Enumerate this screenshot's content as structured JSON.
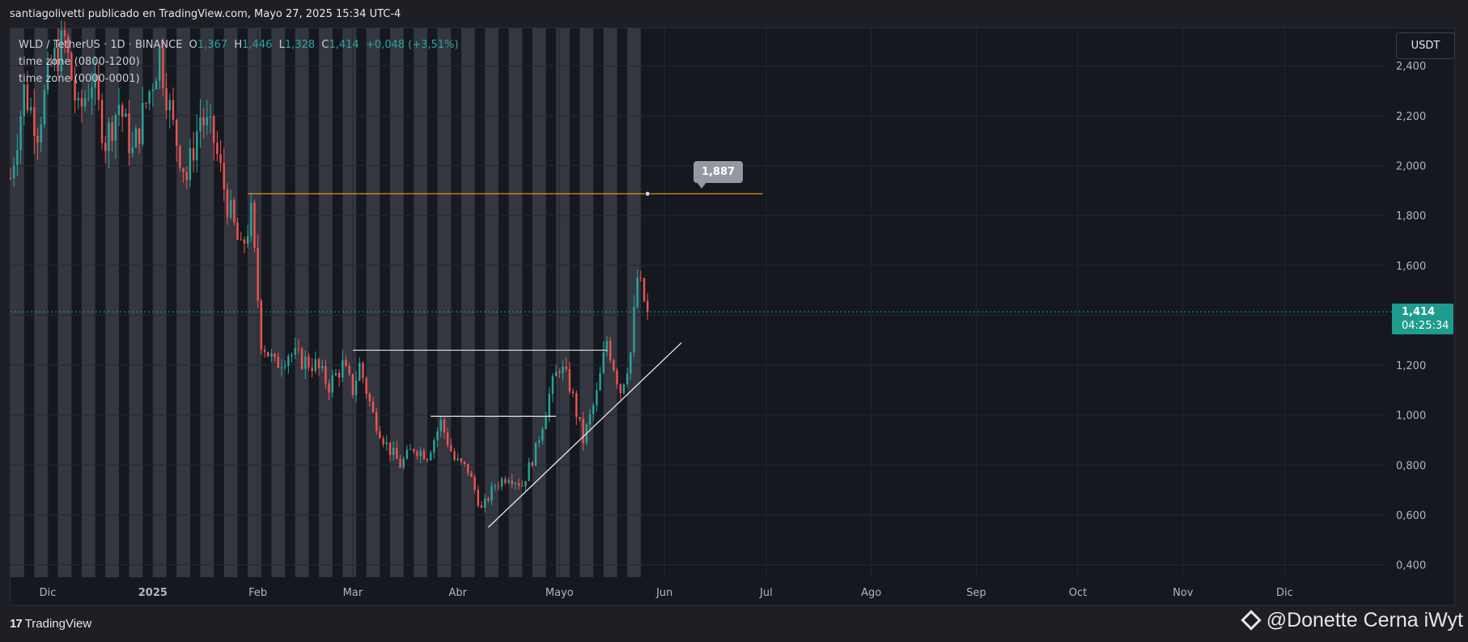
{
  "header": {
    "publisher_line": "santiagolivetti publicado en TradingView.com, Mayo 27, 2025 15:34 UTC-4"
  },
  "legend": {
    "symbol": "WLD / TetherUS · 1D · BINANCE",
    "open_label": "O",
    "open": "1,367",
    "high_label": "H",
    "high": "1,446",
    "low_label": "L",
    "low": "1,328",
    "close_label": "C",
    "close": "1,414",
    "change": "+0,048 (+3,51%)",
    "indicator_1": "time zone (0800-1200)",
    "indicator_2": "time zone (0000-0001)"
  },
  "price_axis": {
    "currency": "USDT"
  },
  "last_price": {
    "price": "1,414",
    "countdown": "04:25:34",
    "value": 1.414
  },
  "annotation": {
    "label": "1,887",
    "value": 1.887
  },
  "footer": {
    "brand": "TradingView",
    "watermark": "@Donette Cerna iWyt"
  },
  "colors": {
    "up": "#26a69a",
    "down": "#ef5350",
    "resistance": "#f59a23",
    "time_zone_bands": "#3a3d47",
    "last_price": "#1e9c8e"
  },
  "chart_data": {
    "type": "candlestick",
    "title": "WLD / TetherUS · 1D · BINANCE",
    "ylim": [
      0.35,
      2.55
    ],
    "y_ticks": [
      2.4,
      2.2,
      2.0,
      1.8,
      1.6,
      1.4,
      1.2,
      1.0,
      0.8,
      0.6,
      0.4
    ],
    "y_tick_labels": [
      "2,400",
      "2,200",
      "2,000",
      "1,800",
      "1,600",
      "1,400",
      "1,200",
      "1,000",
      "0,800",
      "0,600",
      "0,400"
    ],
    "x_range": [
      "2024-11-20",
      "2025-12-31"
    ],
    "x_ticks": [
      {
        "date": "2024-12-01",
        "label": "Dic"
      },
      {
        "date": "2025-01-01",
        "label": "2025"
      },
      {
        "date": "2025-02-01",
        "label": "Feb"
      },
      {
        "date": "2025-03-01",
        "label": "Mar"
      },
      {
        "date": "2025-04-01",
        "label": "Abr"
      },
      {
        "date": "2025-05-01",
        "label": "Mayo"
      },
      {
        "date": "2025-06-01",
        "label": "Jun"
      },
      {
        "date": "2025-07-01",
        "label": "Jul"
      },
      {
        "date": "2025-08-01",
        "label": "Ago"
      },
      {
        "date": "2025-09-01",
        "label": "Sep"
      },
      {
        "date": "2025-10-01",
        "label": "Oct"
      },
      {
        "date": "2025-11-01",
        "label": "Nov"
      },
      {
        "date": "2025-12-01",
        "label": "Dic"
      }
    ],
    "grid": true,
    "close_path": [
      [
        "2024-11-20",
        1.95
      ],
      [
        "2024-11-24",
        2.3
      ],
      [
        "2024-11-28",
        2.15
      ],
      [
        "2024-12-02",
        2.4
      ],
      [
        "2024-12-06",
        2.5
      ],
      [
        "2024-12-10",
        2.2
      ],
      [
        "2024-12-14",
        2.35
      ],
      [
        "2024-12-18",
        2.1
      ],
      [
        "2024-12-22",
        2.25
      ],
      [
        "2024-12-26",
        2.05
      ],
      [
        "2024-12-30",
        2.25
      ],
      [
        "2025-01-03",
        2.45
      ],
      [
        "2025-01-07",
        2.15
      ],
      [
        "2025-01-11",
        1.95
      ],
      [
        "2025-01-15",
        2.2
      ],
      [
        "2025-01-19",
        2.1
      ],
      [
        "2025-01-23",
        1.85
      ],
      [
        "2025-01-27",
        1.65
      ],
      [
        "2025-01-30",
        1.8
      ],
      [
        "2025-02-02",
        1.3
      ],
      [
        "2025-02-06",
        1.2
      ],
      [
        "2025-02-10",
        1.25
      ],
      [
        "2025-02-14",
        1.22
      ],
      [
        "2025-02-18",
        1.2
      ],
      [
        "2025-02-22",
        1.12
      ],
      [
        "2025-02-26",
        1.2
      ],
      [
        "2025-03-01",
        1.1
      ],
      [
        "2025-03-03",
        1.2
      ],
      [
        "2025-03-07",
        1.0
      ],
      [
        "2025-03-11",
        0.88
      ],
      [
        "2025-03-15",
        0.8
      ],
      [
        "2025-03-19",
        0.87
      ],
      [
        "2025-03-23",
        0.84
      ],
      [
        "2025-03-27",
        0.97
      ],
      [
        "2025-03-31",
        0.82
      ],
      [
        "2025-04-04",
        0.78
      ],
      [
        "2025-04-08",
        0.62
      ],
      [
        "2025-04-12",
        0.72
      ],
      [
        "2025-04-16",
        0.76
      ],
      [
        "2025-04-20",
        0.72
      ],
      [
        "2025-04-24",
        0.86
      ],
      [
        "2025-04-28",
        1.08
      ],
      [
        "2025-05-01",
        1.2
      ],
      [
        "2025-05-04",
        1.12
      ],
      [
        "2025-05-08",
        0.9
      ],
      [
        "2025-05-12",
        1.08
      ],
      [
        "2025-05-15",
        1.3
      ],
      [
        "2025-05-19",
        1.1
      ],
      [
        "2025-05-22",
        1.25
      ],
      [
        "2025-05-24",
        1.55
      ],
      [
        "2025-05-27",
        1.414
      ]
    ],
    "resistance_line": {
      "value": 1.887,
      "start": "2025-01-29",
      "end": "2025-06-30"
    },
    "horizontal_levels": [
      {
        "value": 1.26,
        "start": "2025-02-29",
        "end": "2025-05-15"
      },
      {
        "value": 0.995,
        "start": "2025-03-24",
        "end": "2025-04-30"
      }
    ],
    "trendline": {
      "start": [
        "2025-04-10",
        0.55
      ],
      "end": [
        "2025-06-06",
        1.29
      ]
    },
    "time_zone_bands_until": "2025-05-28"
  }
}
